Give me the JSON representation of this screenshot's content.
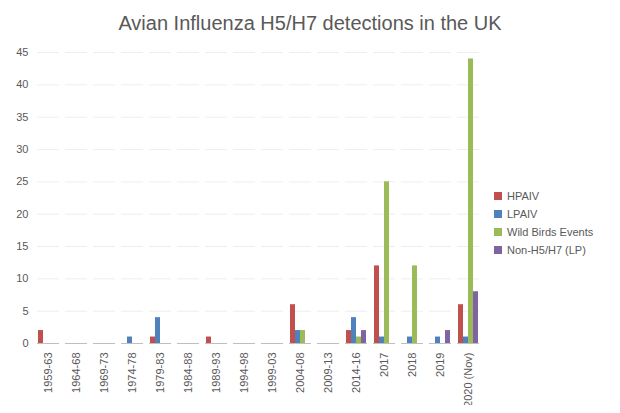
{
  "chart_data": {
    "type": "bar",
    "title": "Avian Influenza H5/H7 detections in the UK",
    "categories": [
      "1959-63",
      "1964-68",
      "1969-73",
      "1974-78",
      "1979-83",
      "1984-88",
      "1989-93",
      "1994-98",
      "1999-03",
      "2004-08",
      "2009-13",
      "2014-16",
      "2017",
      "2018",
      "2019",
      "2020 (Nov)"
    ],
    "series": [
      {
        "name": "HPAIV",
        "color": "#c0504d",
        "values": [
          2,
          0,
          0,
          0,
          1,
          0,
          1,
          0,
          0,
          6,
          0,
          2,
          12,
          0,
          0,
          6
        ]
      },
      {
        "name": "LPAIV",
        "color": "#4f81bd",
        "values": [
          0,
          0,
          0,
          1,
          4,
          0,
          0,
          0,
          0,
          2,
          0,
          4,
          1,
          1,
          1,
          1
        ]
      },
      {
        "name": "Wild Birds Events",
        "color": "#9bbb59",
        "values": [
          0,
          0,
          0,
          0,
          0,
          0,
          0,
          0,
          0,
          2,
          0,
          1,
          25,
          12,
          0,
          44
        ]
      },
      {
        "name": "Non-H5/H7 (LP)",
        "color": "#8064a2",
        "values": [
          0,
          0,
          0,
          0,
          0,
          0,
          0,
          0,
          0,
          0,
          0,
          2,
          0,
          0,
          2,
          8
        ]
      }
    ],
    "ylim": [
      0,
      45
    ],
    "yticks": [
      0,
      5,
      10,
      15,
      20,
      25,
      30,
      35,
      40,
      45
    ],
    "grid": true,
    "legend": "right"
  }
}
